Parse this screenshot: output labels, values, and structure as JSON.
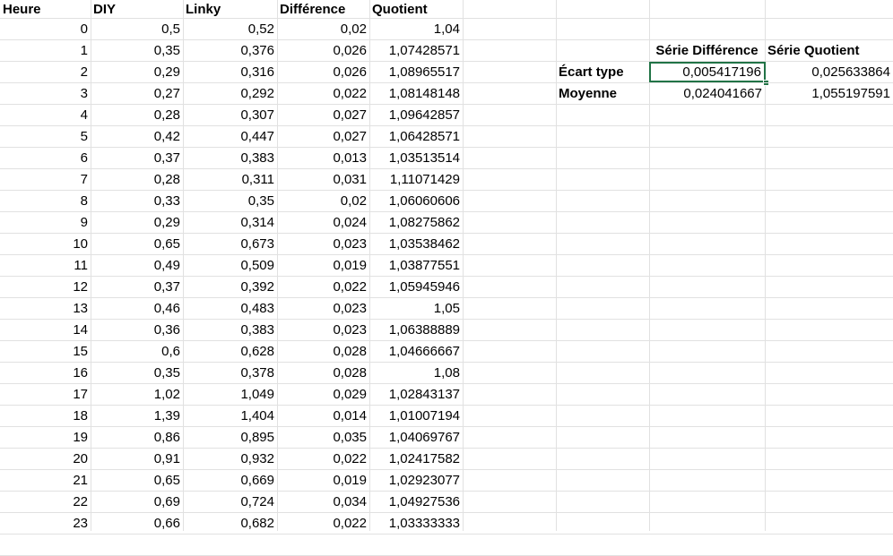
{
  "headers": {
    "heure": "Heure",
    "diy": "DIY",
    "linky": "Linky",
    "difference": "Différence",
    "quotient": "Quotient"
  },
  "rows": [
    {
      "h": "0",
      "diy": "0,5",
      "linky": "0,52",
      "diff": "0,02",
      "quot": "1,04"
    },
    {
      "h": "1",
      "diy": "0,35",
      "linky": "0,376",
      "diff": "0,026",
      "quot": "1,07428571"
    },
    {
      "h": "2",
      "diy": "0,29",
      "linky": "0,316",
      "diff": "0,026",
      "quot": "1,08965517"
    },
    {
      "h": "3",
      "diy": "0,27",
      "linky": "0,292",
      "diff": "0,022",
      "quot": "1,08148148"
    },
    {
      "h": "4",
      "diy": "0,28",
      "linky": "0,307",
      "diff": "0,027",
      "quot": "1,09642857"
    },
    {
      "h": "5",
      "diy": "0,42",
      "linky": "0,447",
      "diff": "0,027",
      "quot": "1,06428571"
    },
    {
      "h": "6",
      "diy": "0,37",
      "linky": "0,383",
      "diff": "0,013",
      "quot": "1,03513514"
    },
    {
      "h": "7",
      "diy": "0,28",
      "linky": "0,311",
      "diff": "0,031",
      "quot": "1,11071429"
    },
    {
      "h": "8",
      "diy": "0,33",
      "linky": "0,35",
      "diff": "0,02",
      "quot": "1,06060606"
    },
    {
      "h": "9",
      "diy": "0,29",
      "linky": "0,314",
      "diff": "0,024",
      "quot": "1,08275862"
    },
    {
      "h": "10",
      "diy": "0,65",
      "linky": "0,673",
      "diff": "0,023",
      "quot": "1,03538462"
    },
    {
      "h": "11",
      "diy": "0,49",
      "linky": "0,509",
      "diff": "0,019",
      "quot": "1,03877551"
    },
    {
      "h": "12",
      "diy": "0,37",
      "linky": "0,392",
      "diff": "0,022",
      "quot": "1,05945946"
    },
    {
      "h": "13",
      "diy": "0,46",
      "linky": "0,483",
      "diff": "0,023",
      "quot": "1,05"
    },
    {
      "h": "14",
      "diy": "0,36",
      "linky": "0,383",
      "diff": "0,023",
      "quot": "1,06388889"
    },
    {
      "h": "15",
      "diy": "0,6",
      "linky": "0,628",
      "diff": "0,028",
      "quot": "1,04666667"
    },
    {
      "h": "16",
      "diy": "0,35",
      "linky": "0,378",
      "diff": "0,028",
      "quot": "1,08"
    },
    {
      "h": "17",
      "diy": "1,02",
      "linky": "1,049",
      "diff": "0,029",
      "quot": "1,02843137"
    },
    {
      "h": "18",
      "diy": "1,39",
      "linky": "1,404",
      "diff": "0,014",
      "quot": "1,01007194"
    },
    {
      "h": "19",
      "diy": "0,86",
      "linky": "0,895",
      "diff": "0,035",
      "quot": "1,04069767"
    },
    {
      "h": "20",
      "diy": "0,91",
      "linky": "0,932",
      "diff": "0,022",
      "quot": "1,02417582"
    },
    {
      "h": "21",
      "diy": "0,65",
      "linky": "0,669",
      "diff": "0,019",
      "quot": "1,02923077"
    },
    {
      "h": "22",
      "diy": "0,69",
      "linky": "0,724",
      "diff": "0,034",
      "quot": "1,04927536"
    },
    {
      "h": "23",
      "diy": "0,66",
      "linky": "0,682",
      "diff": "0,022",
      "quot": "1,03333333"
    }
  ],
  "stats": {
    "col_serie_difference": "Série Différence",
    "col_serie_quotient": "Série Quotient",
    "ecart_type_label": "Écart type",
    "moyenne_label": "Moyenne",
    "ecart_type_difference": "0,005417196",
    "ecart_type_quotient": "0,025633864",
    "moyenne_difference": "0,024041667",
    "moyenne_quotient": "1,055197591"
  },
  "colors": {
    "gridline": "#e1e1e1",
    "selection": "#217346"
  }
}
